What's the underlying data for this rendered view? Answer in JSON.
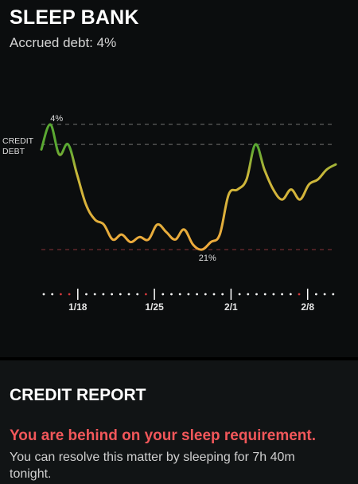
{
  "header": {
    "title": "SLEEP BANK",
    "subtitle": "Accrued debt: 4%"
  },
  "chart_data": {
    "type": "line",
    "y_axis_labels": [
      "CREDIT",
      "DEBT"
    ],
    "reference_levels": [
      {
        "value_pct": 4,
        "label": "4%"
      },
      {
        "value_pct": 0,
        "label": ""
      },
      {
        "value_pct": -21,
        "label": "21%"
      }
    ],
    "x_tick_labels": [
      "1/18",
      "1/25",
      "2/1",
      "2/8"
    ],
    "series": [
      {
        "values": [
          -1,
          4,
          -2,
          0,
          -6,
          -12,
          -15,
          -16,
          -19,
          -18,
          -19.5,
          -18.5,
          -19,
          -16,
          -17.5,
          -19,
          -17,
          -20,
          -21,
          -19.5,
          -18,
          -10,
          -9,
          -7,
          0,
          -5,
          -9,
          -11,
          -9,
          -11,
          -8,
          -7,
          -5,
          -4
        ]
      }
    ],
    "colors": {
      "credit_line": "#5aa832",
      "mid_line": "#c9b83a",
      "debt_line": "#f0a93c",
      "zero_dash": "#6f6f6f",
      "credit_dash": "#6f6f6f",
      "debt_dash": "#8a3438",
      "tick_dot_white": "#ffffff",
      "tick_dot_red": "#d0383c"
    }
  },
  "credit_report": {
    "title": "CREDIT REPORT",
    "alert": "You are behind on your sleep requirement.",
    "advice": "You can resolve this matter by sleeping for 7h 40m tonight."
  }
}
